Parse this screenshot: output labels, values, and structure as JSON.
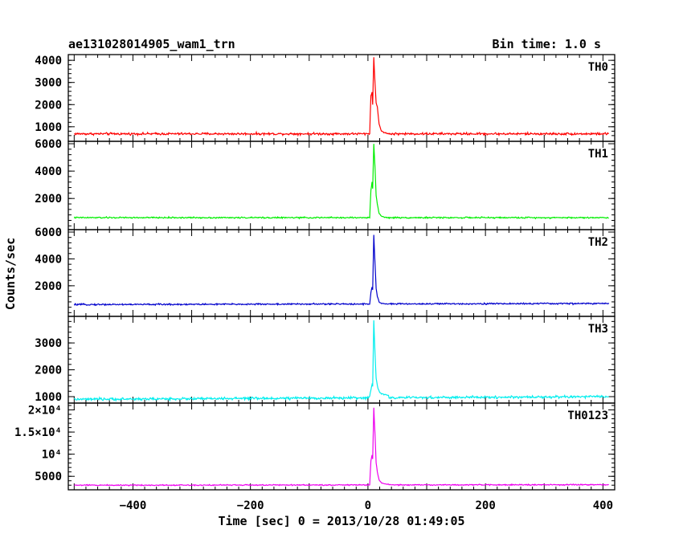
{
  "chart_data": {
    "type": "line",
    "title": "ae131028014905_wam1_trn",
    "bin_label": "Bin time: 1.0 s",
    "xlabel": "Time [sec] 0 = 2013/10/28 01:49:05",
    "ylabel": "Counts/sec",
    "xlim": [
      -510,
      420
    ],
    "x_ticks": [
      -400,
      -200,
      0,
      200,
      400
    ],
    "x_tick_labels": [
      "−400",
      "−200",
      "0",
      "200",
      "400"
    ],
    "x_range": [
      -500,
      410
    ],
    "peak_time": 5,
    "panels": [
      {
        "name": "TH0",
        "color": "#ff0000",
        "ylim": [
          450,
          4150
        ],
        "ticks": [
          1000,
          2000,
          3000,
          4000
        ],
        "tick_labels": [
          "1000",
          "2000",
          "3000",
          "4000"
        ],
        "baseline_start": 680,
        "baseline_end": 680,
        "noise": 50,
        "burst": [
          [
            -2,
            700
          ],
          [
            0,
            2400
          ],
          [
            2,
            2550
          ],
          [
            3,
            2000
          ],
          [
            5,
            4150
          ],
          [
            7,
            3000
          ],
          [
            9,
            2100
          ],
          [
            11,
            1900
          ],
          [
            14,
            1100
          ],
          [
            18,
            800
          ],
          [
            24,
            720
          ],
          [
            30,
            690
          ]
        ]
      },
      {
        "name": "TH1",
        "color": "#00ee00",
        "ylim": [
          -100,
          6000
        ],
        "ticks": [
          2000,
          4000,
          6000
        ],
        "tick_labels": [
          "2000",
          "4000",
          "6000"
        ],
        "baseline_start": 600,
        "baseline_end": 600,
        "noise": 50,
        "burst": [
          [
            -2,
            600
          ],
          [
            0,
            2600
          ],
          [
            2,
            3200
          ],
          [
            3,
            2700
          ],
          [
            5,
            6000
          ],
          [
            7,
            4300
          ],
          [
            9,
            2200
          ],
          [
            11,
            1600
          ],
          [
            14,
            900
          ],
          [
            18,
            700
          ],
          [
            24,
            620
          ],
          [
            30,
            600
          ]
        ]
      },
      {
        "name": "TH2",
        "color": "#0000cc",
        "ylim": [
          -100,
          6000
        ],
        "ticks": [
          2000,
          4000,
          6000
        ],
        "tick_labels": [
          "2000",
          "4000",
          "6000"
        ],
        "baseline_start": 600,
        "baseline_end": 680,
        "noise": 55,
        "burst": [
          [
            -2,
            620
          ],
          [
            0,
            1500
          ],
          [
            2,
            1900
          ],
          [
            3,
            1700
          ],
          [
            5,
            5800
          ],
          [
            7,
            3700
          ],
          [
            9,
            1800
          ],
          [
            11,
            1200
          ],
          [
            14,
            800
          ],
          [
            18,
            700
          ],
          [
            24,
            650
          ],
          [
            30,
            640
          ]
        ]
      },
      {
        "name": "TH3",
        "color": "#00eeee",
        "ylim": [
          850,
          3900
        ],
        "ticks": [
          1000,
          2000,
          3000
        ],
        "tick_labels": [
          "1000",
          "2000",
          "3000"
        ],
        "baseline_start": 900,
        "baseline_end": 1000,
        "noise": 45,
        "burst": [
          [
            -2,
            1000
          ],
          [
            0,
            1250
          ],
          [
            2,
            1450
          ],
          [
            3,
            1400
          ],
          [
            5,
            3850
          ],
          [
            7,
            2600
          ],
          [
            9,
            1700
          ],
          [
            11,
            1400
          ],
          [
            14,
            1200
          ],
          [
            18,
            1100
          ],
          [
            24,
            1080
          ],
          [
            30,
            1060
          ]
        ]
      },
      {
        "name": "TH0123",
        "color": "#ee00ee",
        "ylim": [
          2500,
          21000
        ],
        "ticks": [
          5000,
          10000,
          15000,
          20000
        ],
        "tick_labels": [
          "5000",
          "10⁴",
          "1.5×10⁴",
          "2×10⁴"
        ],
        "baseline_start": 3000,
        "baseline_end": 3100,
        "noise": 120,
        "burst": [
          [
            -2,
            3100
          ],
          [
            0,
            8500
          ],
          [
            2,
            9800
          ],
          [
            3,
            8900
          ],
          [
            5,
            20500
          ],
          [
            7,
            14500
          ],
          [
            9,
            8000
          ],
          [
            11,
            6000
          ],
          [
            14,
            4200
          ],
          [
            18,
            3500
          ],
          [
            24,
            3250
          ],
          [
            30,
            3200
          ]
        ]
      }
    ]
  }
}
